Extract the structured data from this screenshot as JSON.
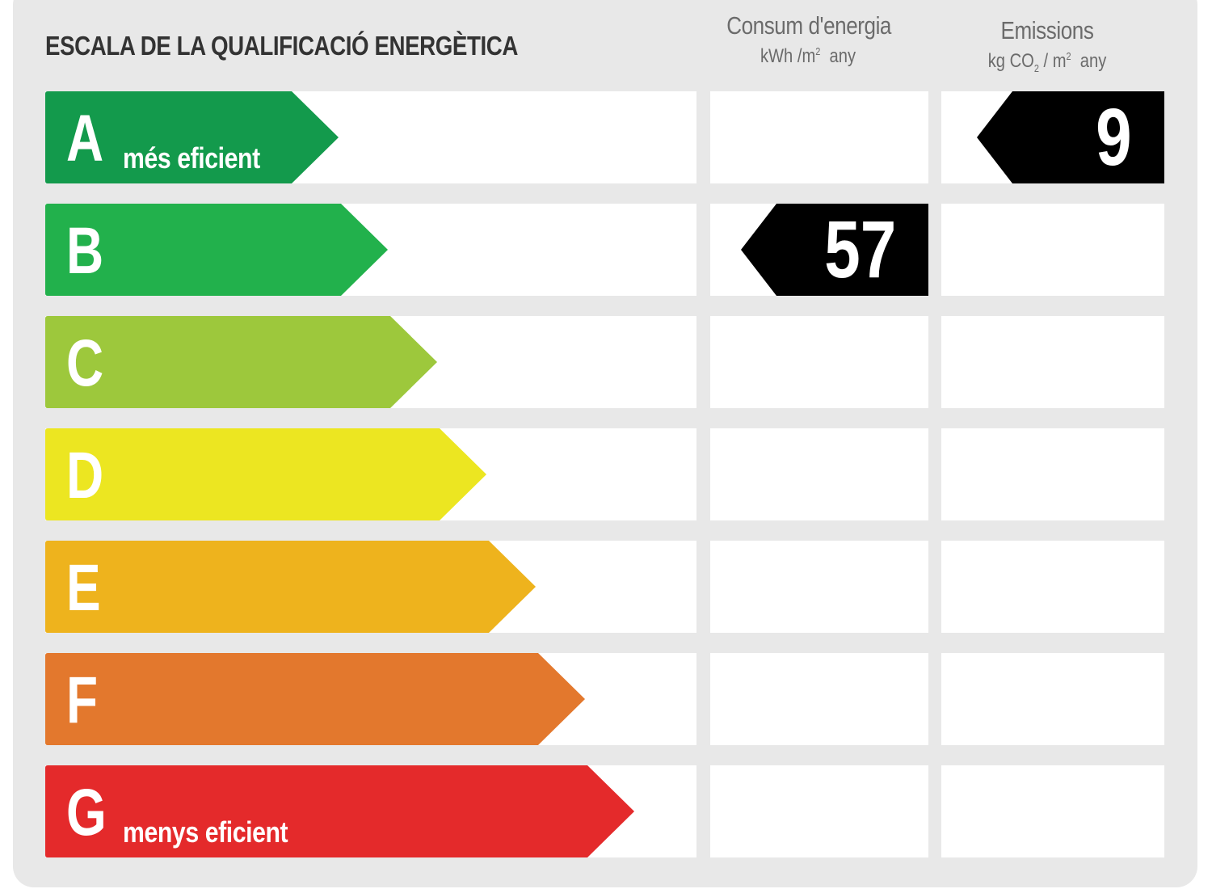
{
  "title": "ESCALA DE LA QUALIFICACIÓ ENERGÈTICA",
  "columns": {
    "consumption": {
      "title": "Consum d'energia",
      "unit_main": "kWh /m",
      "unit_sup": "2",
      "unit_tail": "any"
    },
    "emissions": {
      "title": "Emissions",
      "unit_pre": "kg CO",
      "unit_sub": "2",
      "unit_mid": " / m",
      "unit_sup": "2",
      "unit_tail": "any"
    }
  },
  "ratings": [
    {
      "letter": "A",
      "label": "més eficient",
      "color": "#139a4c"
    },
    {
      "letter": "B",
      "label": "",
      "color": "#22b14c"
    },
    {
      "letter": "C",
      "label": "",
      "color": "#9dc83c"
    },
    {
      "letter": "D",
      "label": "",
      "color": "#ece621"
    },
    {
      "letter": "E",
      "label": "",
      "color": "#eeb31d"
    },
    {
      "letter": "F",
      "label": "",
      "color": "#e3782d"
    },
    {
      "letter": "G",
      "label": "menys eficient",
      "color": "#e42a2b"
    }
  ],
  "consumption_value": {
    "value": "57",
    "rating": "B"
  },
  "emissions_value": {
    "value": "9",
    "rating": "A"
  },
  "badge_color": "#000000"
}
